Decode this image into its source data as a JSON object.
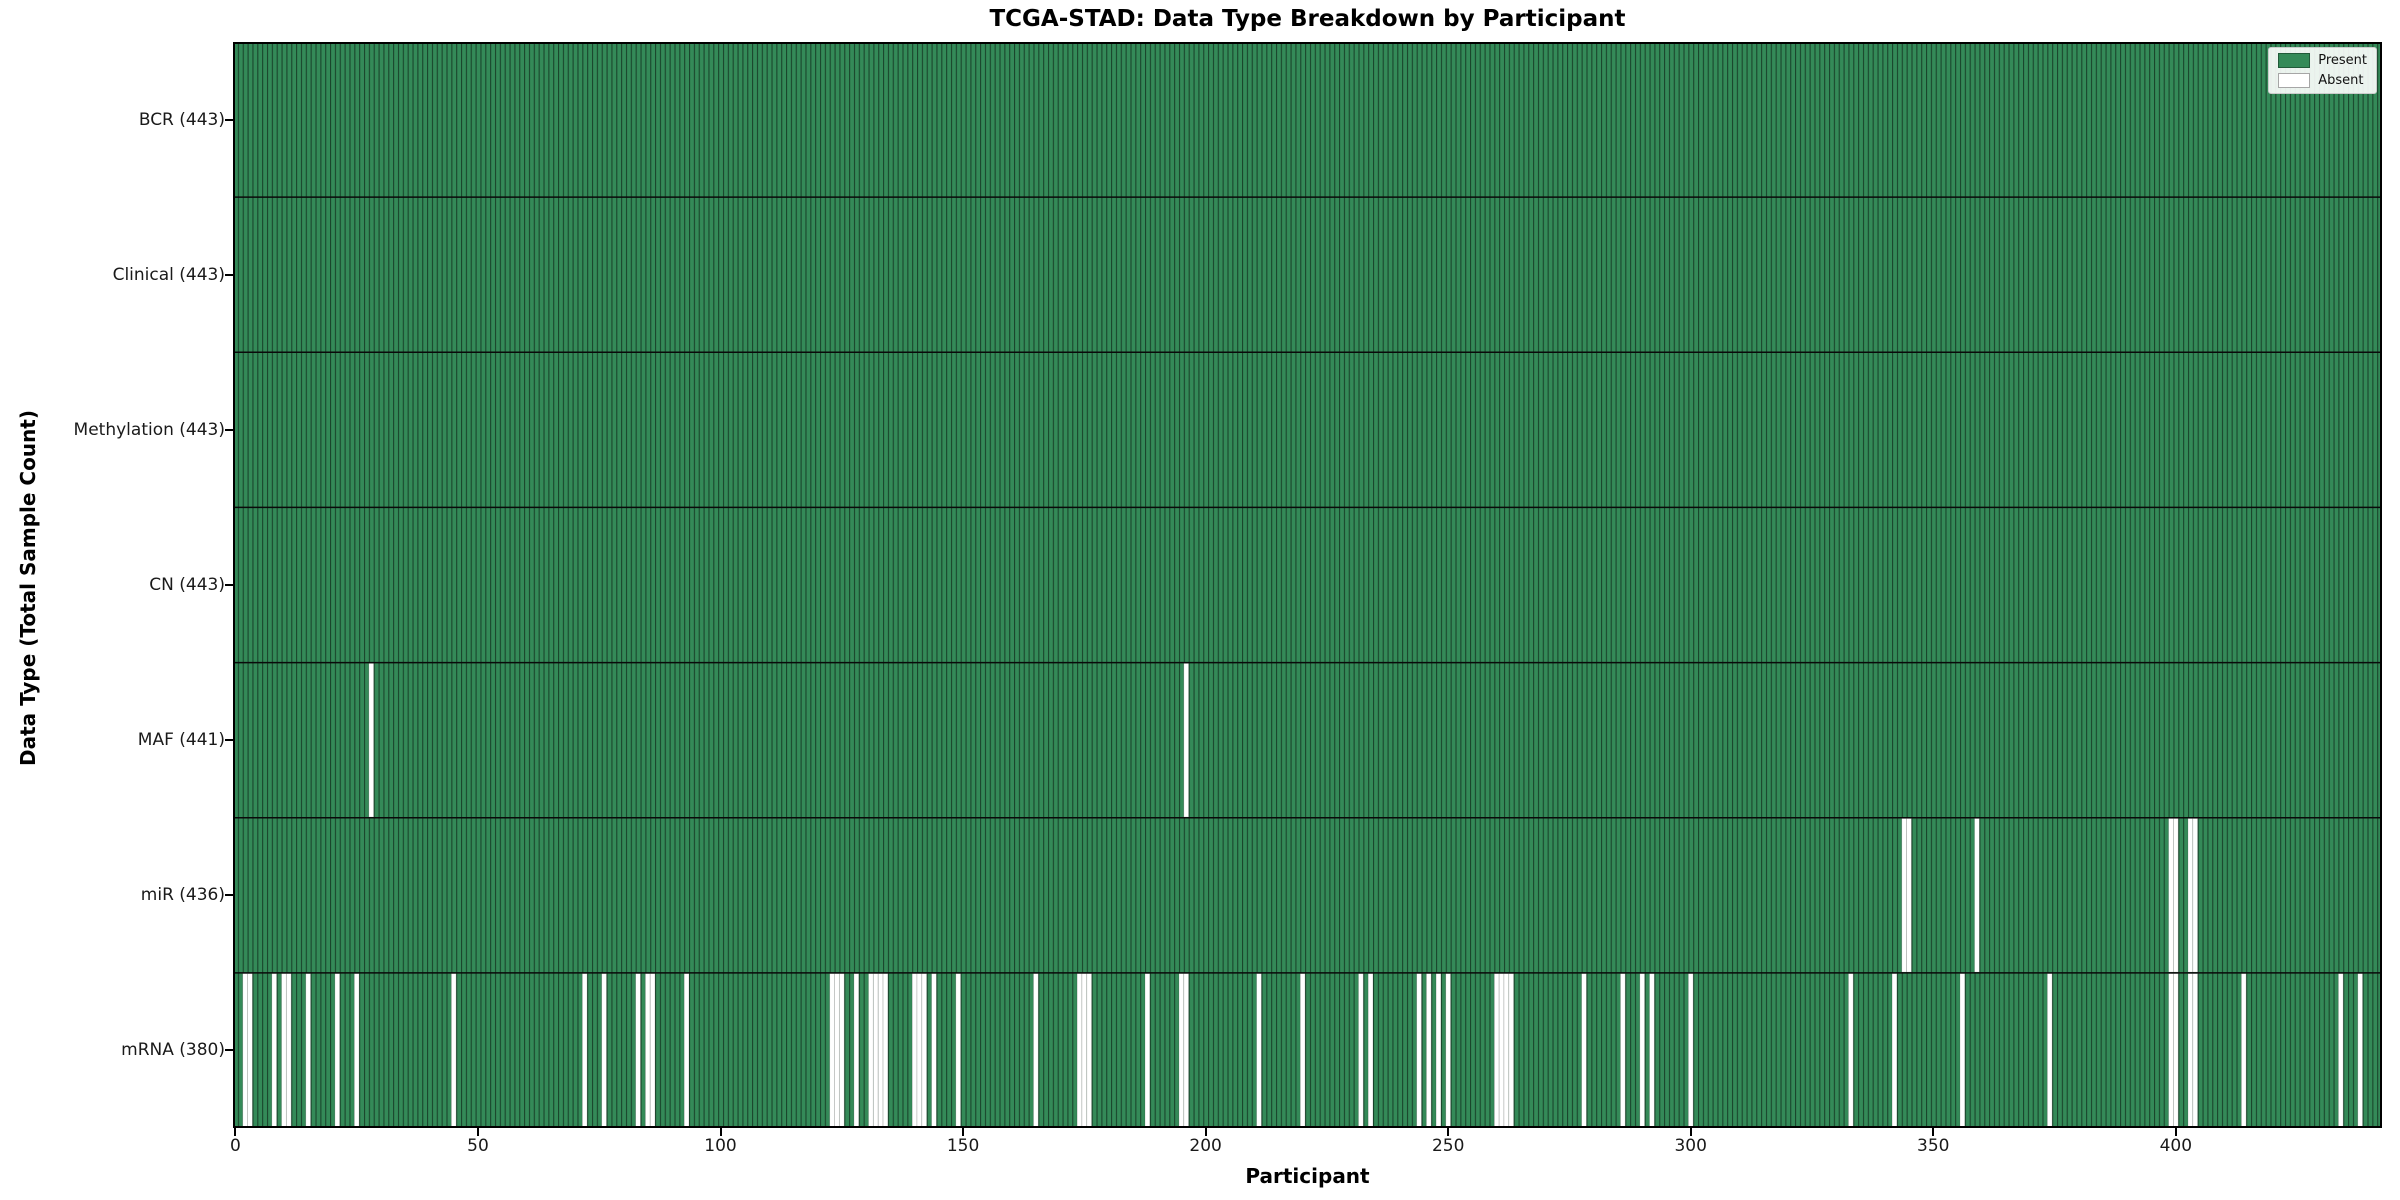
{
  "chart_data": {
    "type": "heatmap",
    "title": "TCGA-STAD: Data Type Breakdown by Participant",
    "xlabel": "Participant",
    "ylabel": "Data Type (Total Sample Count)",
    "n_participants": 443,
    "x_ticks": [
      0,
      50,
      100,
      150,
      200,
      250,
      300,
      350,
      400
    ],
    "xlim": [
      -0.5,
      442.5
    ],
    "grid": false,
    "legend_position": "upper right",
    "legend": [
      {
        "label": "Present",
        "color": "#348a58"
      },
      {
        "label": "Absent",
        "color": "#ffffff"
      }
    ],
    "colors": {
      "present": "#348a58",
      "absent": "#ffffff",
      "bar_edge": "rgba(0,0,0,0.5)",
      "row_separator": "#0a0a0a",
      "plot_border": "#000000"
    },
    "rows": [
      {
        "name": "BCR",
        "total": 443,
        "label": "BCR (443)",
        "absent": []
      },
      {
        "name": "Clinical",
        "total": 443,
        "label": "Clinical (443)",
        "absent": []
      },
      {
        "name": "Methylation",
        "total": 443,
        "label": "Methylation (443)",
        "absent": []
      },
      {
        "name": "CN",
        "total": 443,
        "label": "CN (443)",
        "absent": []
      },
      {
        "name": "MAF",
        "total": 441,
        "label": "MAF (441)",
        "absent": [
          28,
          196
        ]
      },
      {
        "name": "miR",
        "total": 436,
        "label": "miR (436)",
        "absent": [
          344,
          345,
          359,
          399,
          400,
          403,
          404
        ]
      },
      {
        "name": "mRNA",
        "total": 380,
        "label": "mRNA (380)",
        "absent": [
          2,
          3,
          8,
          10,
          11,
          15,
          21,
          25,
          45,
          72,
          76,
          83,
          85,
          86,
          93,
          123,
          124,
          125,
          128,
          131,
          132,
          133,
          134,
          140,
          141,
          142,
          144,
          149,
          165,
          174,
          175,
          176,
          188,
          195,
          196,
          211,
          220,
          232,
          234,
          244,
          246,
          248,
          250,
          260,
          261,
          262,
          263,
          278,
          286,
          290,
          292,
          300,
          333,
          342,
          356,
          374,
          399,
          400,
          403,
          404,
          414,
          434,
          438
        ]
      }
    ]
  }
}
